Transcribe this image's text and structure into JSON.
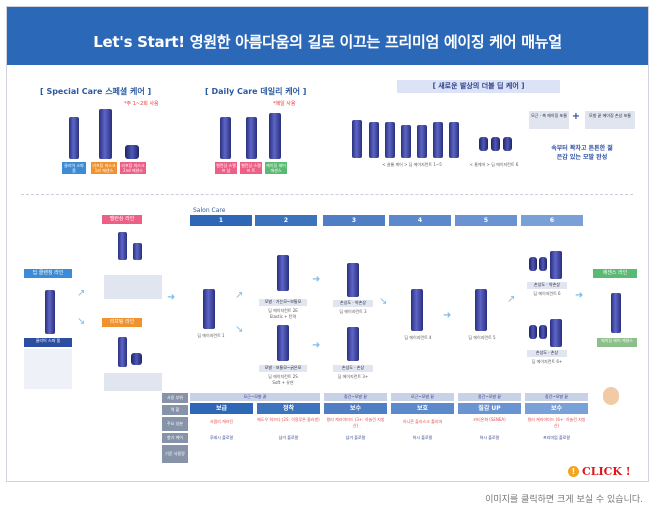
{
  "banner": {
    "title": "Let's Start!  영원한 아름다움의 길로   이끄는 프리미엄 에이징 케어 매뉴얼"
  },
  "special_care": {
    "title": "[ Special Care 스페셜 케어 ]",
    "note": "*주 1~2회 사용",
    "tags": [
      "클리어 스파 폼",
      "리프팅 마스크 1st 에센스",
      "리프팅 마스크 2nd 에센스"
    ]
  },
  "daily_care": {
    "title": "[ Daily Care 데일리 케어 ]",
    "note": "*매일 사용",
    "tags": [
      "벨런싱 스캘프 샴",
      "벨런싱 스캘프 트",
      "에이징 헤어 에센스"
    ]
  },
  "deep_care": {
    "title": "[ 새로운 발상의 더블 딥 케어 ]",
    "bottle_label": "< 살롱 케어 > 딥 에이지런트 1~5",
    "jar_label": "< 홈케어 > 딥 에이지런트 6",
    "box1": "모근 · 축 에이징 포뮬",
    "box2": "모발 끝 에이징 손상 포뮬",
    "plus": "+",
    "result": "속부터 꽉차고 튼튼한 젊은감 있는 모발 완성"
  },
  "salon": {
    "label": "Salon Care",
    "steps": [
      "1",
      "2",
      "3",
      "4",
      "5",
      "6"
    ],
    "lines": {
      "balancing": "밸런싱 라인",
      "lifting": "리프팅 라인",
      "deep_clean": "딥 클렌징 라인",
      "essence": "에센스 라인"
    },
    "products": {
      "clear_spa": "클리어 스파 폼",
      "deep1": "딥 에이지런트 1",
      "deep2e": "딥 에이지런트 2E",
      "deep2e_sub": "Elastic + 탄력",
      "deep2e_box": "모발 · 가는모~보통모",
      "deep2s": "딥 에이지런트 2S",
      "deep2s_sub": "Soft + 유연",
      "deep2s_box": "모발 · 보통모~굵은모",
      "deep3": "딥 에이지런트 3",
      "deep3_box": "손상도 · 약손상",
      "deep3p": "딥 에이지런트 3+",
      "deep3p_box": "손상도 · 손상",
      "deep4": "딥 에이지런트 4",
      "deep5": "딥 에이지런트 5",
      "deep6": "딥 에이지런트 6",
      "deep6_box": "손상도 · 약손상",
      "deep6p": "딥 에이지런트 6+",
      "deep6p_box": "손상도 · 손상",
      "essence": "에이징 헤어 에센스"
    }
  },
  "table": {
    "row_headers": [
      "사용 부위",
      "역 할",
      "주요 성분",
      "향기 케어",
      "기준 사용량"
    ],
    "columns": [
      {
        "part": "모근~모발 끝",
        "role": "보급",
        "ingredient": "서펌리 케라틴",
        "scent": "후레시 플로랄"
      },
      {
        "part": "모근~모발 끝",
        "role": "정착",
        "ingredient": "메도우 허브다 (2S: 히알루론 콜라겐)",
        "scent": "샴거 플로랄"
      },
      {
        "part": "중간~모발 끝",
        "role": "보수",
        "ingredient": "컬러 케라아미드 (3+: 히놀린 지방산)",
        "scent": "샴거 플로랄"
      },
      {
        "part": "모근~모발 끝",
        "role": "보호",
        "ingredient": "아니존 플라스크 폴리머",
        "scent": "허시 플로랄"
      },
      {
        "part": "중간~모발 끝",
        "role": "질감 UP",
        "ingredient": "카티온화 (SENEA)",
        "scent": "허시 플로랄"
      },
      {
        "part": "중간~모발 끝",
        "role": "보수",
        "ingredient": "컬러 케라아미드 (6+: 히놀린 지방산)",
        "scent": "프리미엄 플로랄"
      }
    ]
  },
  "click": "CLICK !",
  "caption": "이미지를 클릭하면 크게 보실 수 있습니다.",
  "colors": {
    "banner": "#2c68b8",
    "step": "#2e67b5",
    "accent_red": "#e2131a"
  }
}
